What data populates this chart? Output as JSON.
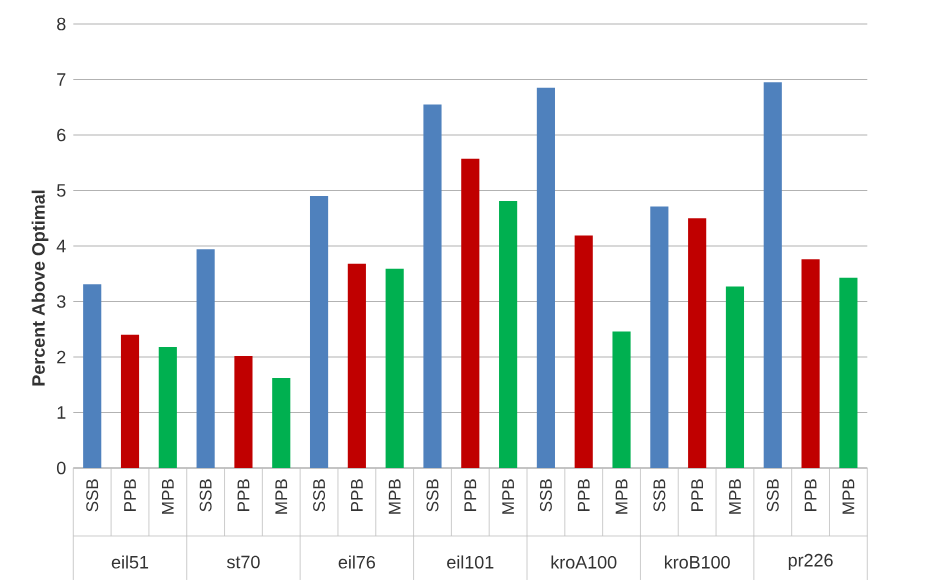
{
  "chart_data": {
    "type": "bar",
    "ylabel": "Percent Above Optimal",
    "categories": [
      "eil51",
      "st70",
      "eil76",
      "eil101",
      "kroA100",
      "kroB100",
      "pr226"
    ],
    "series": [
      {
        "name": "SSB",
        "color": "#4f81bd",
        "values": [
          3.31,
          3.94,
          4.9,
          6.55,
          6.85,
          4.71,
          6.95
        ]
      },
      {
        "name": "PPB",
        "color": "#c00000",
        "values": [
          2.4,
          2.02,
          3.68,
          5.57,
          4.19,
          4.5,
          3.76
        ]
      },
      {
        "name": "MPB",
        "color": "#00b050",
        "values": [
          2.18,
          1.62,
          3.59,
          4.81,
          2.46,
          3.27,
          3.43
        ]
      }
    ],
    "ylim": [
      0,
      8
    ],
    "yticks": [
      0,
      1,
      2,
      3,
      4,
      5,
      6,
      7,
      8
    ],
    "grid": "y"
  }
}
